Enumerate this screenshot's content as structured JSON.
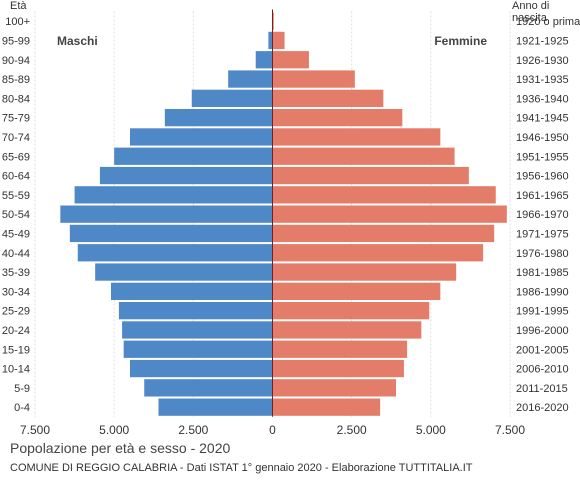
{
  "chart_data": {
    "type": "bar",
    "orientation": "horizontal-population-pyramid",
    "title": "Popolazione per età e sesso - 2020",
    "subtitle": "COMUNE DI REGGIO CALABRIA - Dati ISTAT 1° gennaio 2020 - Elaborazione TUTTITALIA.IT",
    "left_axis_label": "Età",
    "right_axis_label": "Anno di nascita",
    "categories": [
      "100+",
      "95-99",
      "90-94",
      "85-89",
      "80-84",
      "75-79",
      "70-74",
      "65-69",
      "60-64",
      "55-59",
      "50-54",
      "45-49",
      "40-44",
      "35-39",
      "30-34",
      "25-29",
      "20-24",
      "15-19",
      "10-14",
      "5-9",
      "0-4"
    ],
    "birth_years": [
      "1920 o prima",
      "1921-1925",
      "1926-1930",
      "1931-1935",
      "1936-1940",
      "1941-1945",
      "1946-1950",
      "1951-1955",
      "1956-1960",
      "1961-1965",
      "1966-1970",
      "1971-1975",
      "1976-1980",
      "1981-1985",
      "1986-1990",
      "1991-1995",
      "1996-2000",
      "2001-2005",
      "2006-2010",
      "2011-2015",
      "2016-2020"
    ],
    "series": [
      {
        "name": "Maschi",
        "color": "#4f88c6",
        "values": [
          10,
          130,
          530,
          1400,
          2550,
          3400,
          4500,
          5000,
          5450,
          6250,
          6700,
          6400,
          6150,
          5600,
          5100,
          4850,
          4750,
          4700,
          4500,
          4050,
          3600
        ]
      },
      {
        "name": "Femmine",
        "color": "#e37c68",
        "values": [
          40,
          380,
          1150,
          2600,
          3500,
          4100,
          5300,
          5750,
          6200,
          7050,
          7400,
          7000,
          6650,
          5800,
          5300,
          4950,
          4700,
          4250,
          4150,
          3900,
          3400
        ]
      }
    ],
    "xlim": [
      -7500,
      7500
    ],
    "xticks": [
      -7500,
      -5000,
      -2500,
      0,
      2500,
      5000,
      7500
    ],
    "xtick_labels": [
      "7.500",
      "5.000",
      "2.500",
      "0",
      "2.500",
      "5.000",
      "7.500"
    ],
    "grid": true
  }
}
